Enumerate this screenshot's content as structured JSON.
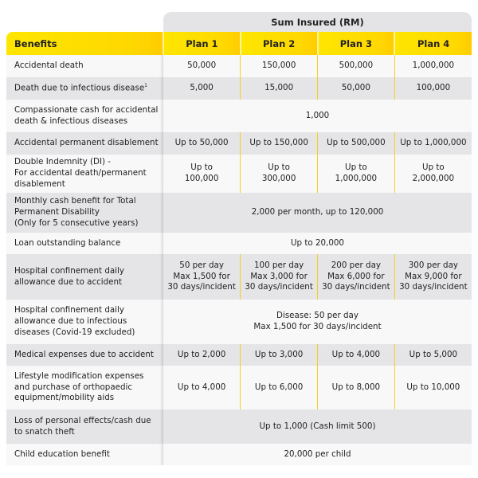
{
  "header": {
    "sum_insured": "Sum Insured (RM)",
    "benefits": "Benefits",
    "plans": [
      "Plan 1",
      "Plan 2",
      "Plan 3",
      "Plan 4"
    ]
  },
  "colors": {
    "accent": "#ffdd00",
    "row_light": "#f8f8f9",
    "row_dark": "#e5e5e7"
  },
  "rows": [
    {
      "benefit": "Accidental death",
      "values": [
        "50,000",
        "150,000",
        "500,000",
        "1,000,000"
      ]
    },
    {
      "benefit": "Death due to infectious disease",
      "footnote": "1",
      "values": [
        "5,000",
        "15,000",
        "50,000",
        "100,000"
      ]
    },
    {
      "benefit": "Compassionate cash for accidental death & infectious diseases",
      "merged": "1,000"
    },
    {
      "benefit": "Accidental permanent disablement",
      "values": [
        "Up to 50,000",
        "Up to 150,000",
        "Up to 500,000",
        "Up to 1,000,000"
      ]
    },
    {
      "benefit": "Double Indemnity (DI) -\nFor accidental death/permanent disablement",
      "values": [
        "Up to\n100,000",
        "Up to\n300,000",
        "Up to\n1,000,000",
        "Up to\n2,000,000"
      ]
    },
    {
      "benefit": "Monthly cash benefit for Total Permanent Disability\n(Only for 5 consecutive years)",
      "merged": "2,000 per month, up to 120,000"
    },
    {
      "benefit": "Loan outstanding balance",
      "merged": "Up to 20,000"
    },
    {
      "benefit": "Hospital confinement daily allowance due to accident",
      "values": [
        "50 per day\nMax 1,500 for\n30 days/incident",
        "100 per day\nMax 3,000 for\n30 days/incident",
        "200 per day\nMax 6,000 for\n30 days/incident",
        "300 per day\nMax 9,000 for\n30 days/incident"
      ]
    },
    {
      "benefit": "Hospital confinement daily allowance due to infectious diseases (Covid-19 excluded)",
      "merged": "Disease: 50 per day\nMax 1,500 for 30 days/incident"
    },
    {
      "benefit": "Medical expenses due to accident",
      "values": [
        "Up to 2,000",
        "Up to 3,000",
        "Up to 4,000",
        "Up to 5,000"
      ]
    },
    {
      "benefit": "Lifestyle modification expenses and purchase of orthopaedic equipment/mobility aids",
      "values": [
        "Up to 4,000",
        "Up to 6,000",
        "Up to 8,000",
        "Up to 10,000"
      ]
    },
    {
      "benefit": "Loss of personal effects/cash due to snatch theft",
      "merged": "Up to 1,000 (Cash limit 500)"
    },
    {
      "benefit": "Child education benefit",
      "merged": "20,000 per child"
    }
  ]
}
